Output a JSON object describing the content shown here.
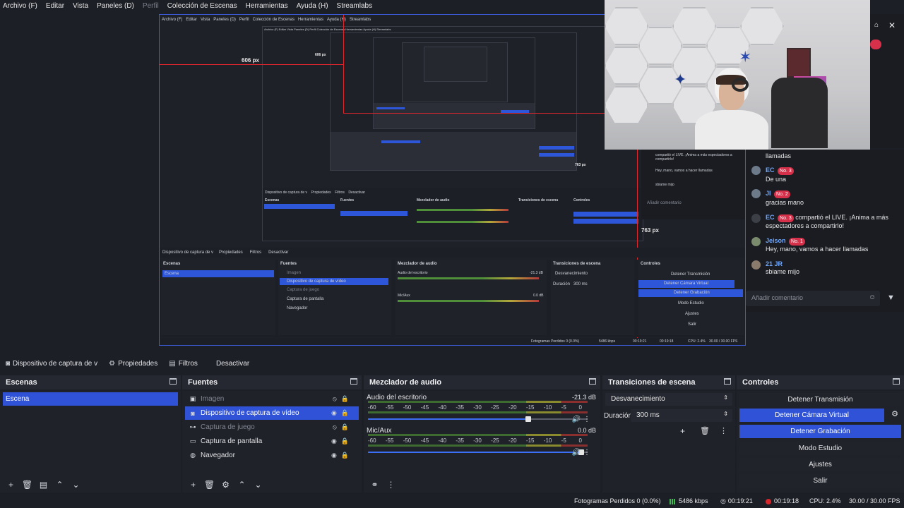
{
  "menu": [
    "Archivo (F)",
    "Editar",
    "Vista",
    "Paneles (D)",
    "Perfil",
    "Colección de Escenas",
    "Herramientas",
    "Ayuda (H)",
    "Streamlabs"
  ],
  "preview": {
    "label_606": "606 px",
    "label_763": "763 px",
    "nested_606": "606 px",
    "nested_763": "763 px",
    "inner_toolbar": [
      "Dispositivo de captura de v",
      "Propiedades",
      "Filtros",
      "Desactivar"
    ],
    "inner_docks": [
      "Escenas",
      "Fuentes",
      "Mezclador de audio",
      "Transiciones de escena",
      "Controles"
    ],
    "inner_scene": "Escena",
    "inner_sources": [
      "Imagen",
      "Dispositivo de captura de vídeo",
      "Captura de juego",
      "Captura de pantalla",
      "Navegador"
    ],
    "inner_audio": [
      "Audio del escritorio",
      "Mic/Aux"
    ],
    "inner_audio_db": [
      "-21.3 dB",
      "0.0 dB"
    ],
    "inner_transition": "Desvanecimiento",
    "inner_duration_label": "Duración",
    "inner_duration": "300 ms",
    "inner_controls": [
      "Detener Transmisión",
      "Detener Cámara Virtual",
      "Detener Grabación",
      "Modo Estudio",
      "Ajustes",
      "Salir"
    ],
    "inner_status": [
      "Fotogramas Perdidos 0 (0.0%)",
      "5486 kbps",
      "00:19:21",
      "00:19:18",
      "CPU: 2.4%",
      "30.00 / 30.00 FPS"
    ]
  },
  "chat": {
    "add_comment": "Añadir comentario",
    "lines": [
      {
        "user": "",
        "text": "llamadas"
      },
      {
        "user": "EC",
        "badge": "No. 3",
        "text": ""
      },
      {
        "user": "",
        "text": "De una"
      },
      {
        "user": "",
        "text": "gracias mano"
      },
      {
        "user": "JI",
        "badge": "No. 2",
        "text": ""
      },
      {
        "user": "EC",
        "badge": "No. 3",
        "text": "compartió el LIVE. ¡Anima a más espectadores a compartirlo!"
      },
      {
        "user": "Jeison",
        "badge": "No. 1",
        "text": "Hey, mano, vamos a hacer llamadas"
      },
      {
        "user": "21 JR",
        "badge": "",
        "text": "sbiame mijo"
      }
    ],
    "mini_lines": [
      "compartió el LIVE. ¡Anima a más espectadores a compartirlo!",
      "Hey, mano, vamos a hacer llamadas",
      "sbiame mijo"
    ],
    "mini_add": "Añadir comentario"
  },
  "toolbar": {
    "source": "Dispositivo de captura de v",
    "properties": "Propiedades",
    "filters": "Filtros",
    "deactivate": "Desactivar"
  },
  "scenes": {
    "title": "Escenas",
    "items": [
      "Escena"
    ]
  },
  "sources": {
    "title": "Fuentes",
    "items": [
      {
        "label": "Imagen",
        "icon": "image-icon",
        "state": "hidden"
      },
      {
        "label": "Dispositivo de captura de vídeo",
        "icon": "camera-icon",
        "state": "selected"
      },
      {
        "label": "Captura de juego",
        "icon": "gamepad-icon",
        "state": "hidden"
      },
      {
        "label": "Captura de pantalla",
        "icon": "monitor-icon",
        "state": "visible"
      },
      {
        "label": "Navegador",
        "icon": "globe-icon",
        "state": "visible"
      }
    ]
  },
  "mixer": {
    "title": "Mezclador de audio",
    "scale": [
      "-60",
      "-55",
      "-50",
      "-45",
      "-40",
      "-35",
      "-30",
      "-25",
      "-20",
      "-15",
      "-10",
      "-5",
      "0"
    ],
    "channels": [
      {
        "name": "Audio del escritorio",
        "db": "-21.3 dB",
        "volume": 0.73
      },
      {
        "name": "Mic/Aux",
        "db": "0.0 dB",
        "volume": 0.97
      }
    ]
  },
  "transitions": {
    "title": "Transiciones de escena",
    "selected": "Desvanecimiento",
    "duration_label": "Duración",
    "duration": "300 ms"
  },
  "controls": {
    "title": "Controles",
    "buttons": [
      {
        "label": "Detener Transmisión",
        "active": false
      },
      {
        "label": "Detener Cámara Virtual",
        "active": true
      },
      {
        "label": "Detener Grabación",
        "active": true
      },
      {
        "label": "Modo Estudio",
        "active": false
      },
      {
        "label": "Ajustes",
        "active": false
      },
      {
        "label": "Salir",
        "active": false
      }
    ]
  },
  "status": {
    "dropped": "Fotogramas Perdidos 0 (0.0%)",
    "bitrate": "5486 kbps",
    "stream_time": "00:19:21",
    "rec_time": "00:19:18",
    "cpu": "CPU: 2.4%",
    "fps": "30.00 / 30.00 FPS"
  },
  "colors": {
    "accent": "#2f52d6",
    "red_guide": "#e0262c",
    "bg": "#1d1f26"
  }
}
